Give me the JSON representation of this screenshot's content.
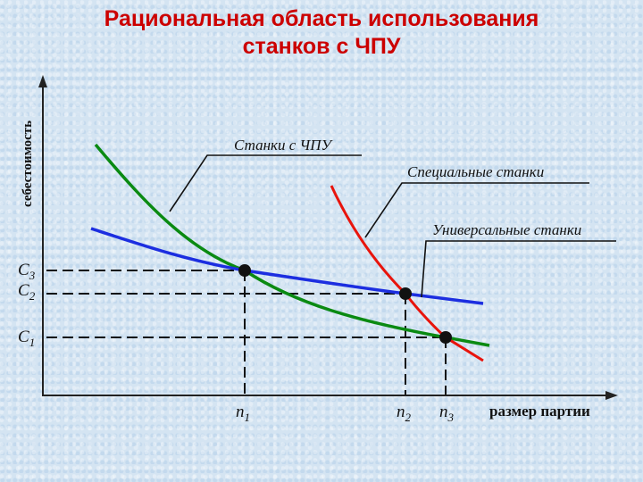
{
  "title": {
    "line1": "Рациональная область использования",
    "line2": "станков с ЧПУ"
  },
  "y_axis_label": "себестоимость",
  "x_axis_label": "размер партии",
  "curves": {
    "cnc": {
      "label": "Станки с ЧПУ",
      "color": "#0a8a12"
    },
    "special": {
      "label": "Специальные станки",
      "color": "#e8140c"
    },
    "universal": {
      "label": "Универсальные станки",
      "color": "#1c2ee0"
    }
  },
  "y_levels": [
    {
      "base": "C",
      "sub": "3"
    },
    {
      "base": "C",
      "sub": "2"
    },
    {
      "base": "C",
      "sub": "1"
    }
  ],
  "x_points": [
    {
      "base": "n",
      "sub": "1"
    },
    {
      "base": "n",
      "sub": "2"
    },
    {
      "base": "n",
      "sub": "3"
    }
  ]
}
